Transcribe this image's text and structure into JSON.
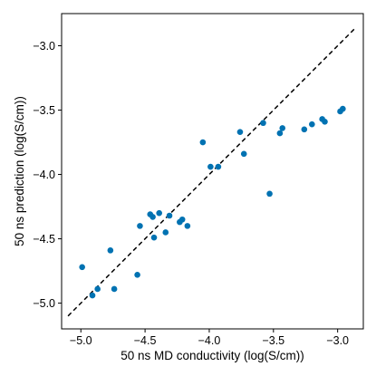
{
  "chart_data": {
    "type": "scatter",
    "title": "",
    "xlabel": "50 ns MD conductivity (log(S/cm))",
    "ylabel": "50 ns prediction (log(S/cm))",
    "xlim": [
      -5.15,
      -2.8
    ],
    "ylim": [
      -5.2,
      -2.75
    ],
    "xticks": [
      -5.0,
      -4.5,
      -4.0,
      -3.5,
      -3.0
    ],
    "xtick_labels": [
      "−5.0",
      "−4.5",
      "−4.0",
      "−3.5",
      "−3.0"
    ],
    "yticks": [
      -5.0,
      -4.5,
      -4.0,
      -3.5,
      -3.0
    ],
    "ytick_labels": [
      "−5.0",
      "−4.5",
      "−4.0",
      "−3.5",
      "−3.0"
    ],
    "grid": false,
    "point_color": "#0072b2",
    "reference_line": {
      "style": "dashed",
      "color": "#000000",
      "x": [
        -5.1,
        -2.87
      ],
      "y": [
        -5.1,
        -2.87
      ]
    },
    "series": [
      {
        "points": [
          {
            "x": -4.99,
            "y": -4.72
          },
          {
            "x": -4.91,
            "y": -4.94
          },
          {
            "x": -4.87,
            "y": -4.89
          },
          {
            "x": -4.77,
            "y": -4.59
          },
          {
            "x": -4.74,
            "y": -4.89
          },
          {
            "x": -4.56,
            "y": -4.78
          },
          {
            "x": -4.54,
            "y": -4.4
          },
          {
            "x": -4.46,
            "y": -4.31
          },
          {
            "x": -4.44,
            "y": -4.33
          },
          {
            "x": -4.43,
            "y": -4.49
          },
          {
            "x": -4.39,
            "y": -4.3
          },
          {
            "x": -4.34,
            "y": -4.45
          },
          {
            "x": -4.31,
            "y": -4.32
          },
          {
            "x": -4.23,
            "y": -4.37
          },
          {
            "x": -4.21,
            "y": -4.35
          },
          {
            "x": -4.17,
            "y": -4.4
          },
          {
            "x": -4.05,
            "y": -3.75
          },
          {
            "x": -3.99,
            "y": -3.94
          },
          {
            "x": -3.93,
            "y": -3.94
          },
          {
            "x": -3.76,
            "y": -3.67
          },
          {
            "x": -3.73,
            "y": -3.84
          },
          {
            "x": -3.58,
            "y": -3.6
          },
          {
            "x": -3.53,
            "y": -4.15
          },
          {
            "x": -3.45,
            "y": -3.68
          },
          {
            "x": -3.43,
            "y": -3.64
          },
          {
            "x": -3.26,
            "y": -3.65
          },
          {
            "x": -3.2,
            "y": -3.61
          },
          {
            "x": -3.12,
            "y": -3.57
          },
          {
            "x": -3.1,
            "y": -3.59
          },
          {
            "x": -2.98,
            "y": -3.51
          },
          {
            "x": -2.96,
            "y": -3.49
          }
        ]
      }
    ]
  }
}
